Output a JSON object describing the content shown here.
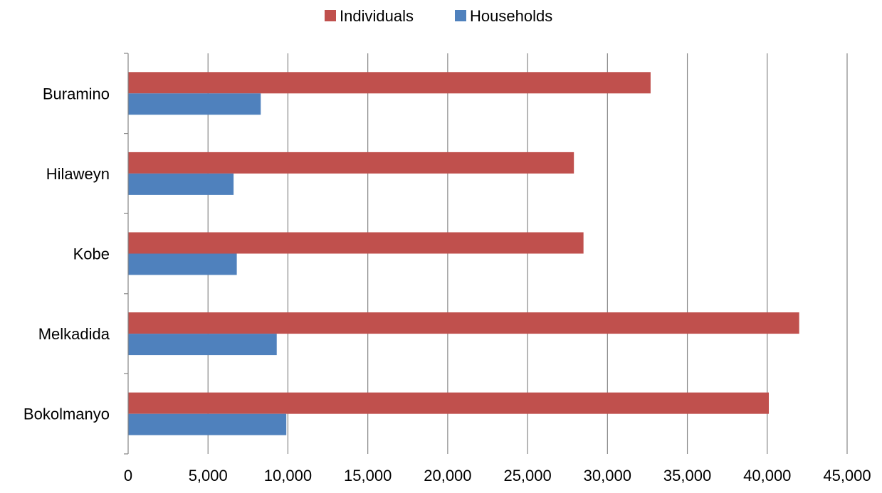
{
  "chart_data": {
    "type": "bar",
    "orientation": "horizontal",
    "categories": [
      "Buramino",
      "Hilaweyn",
      "Kobe",
      "Melkadida",
      "Bokolmanyo"
    ],
    "series": [
      {
        "name": "Individuals",
        "color": "#c0504d",
        "values": [
          32700,
          27900,
          28500,
          42000,
          40100
        ]
      },
      {
        "name": "Households",
        "color": "#4f81bd",
        "values": [
          8300,
          6600,
          6800,
          9300,
          9900
        ]
      }
    ],
    "xlim": [
      0,
      45000
    ],
    "xticks": [
      0,
      5000,
      10000,
      15000,
      20000,
      25000,
      30000,
      35000,
      40000,
      45000
    ],
    "xtick_labels": [
      "0",
      "5,000",
      "10,000",
      "15,000",
      "20,000",
      "25,000",
      "30,000",
      "35,000",
      "40,000",
      "45,000"
    ],
    "grid": true,
    "legend_position": "top",
    "title": "",
    "xlabel": "",
    "ylabel": ""
  }
}
